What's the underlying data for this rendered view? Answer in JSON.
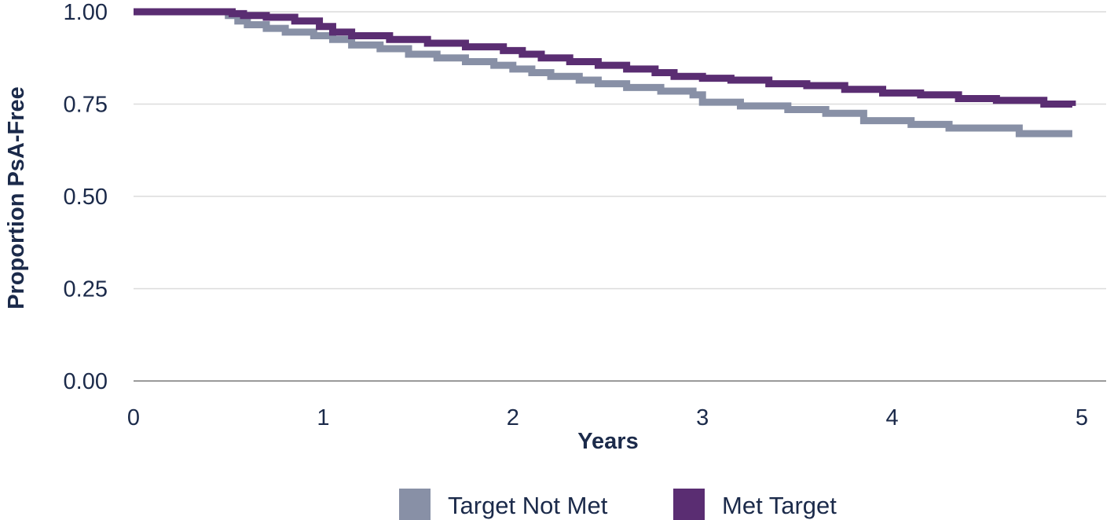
{
  "chart_data": {
    "type": "line",
    "step": true,
    "xlabel": "Years",
    "ylabel": "Proportion PsA-Free",
    "xlim": [
      0,
      5
    ],
    "ylim": [
      0,
      1
    ],
    "x_ticks": [
      "0",
      "1",
      "2",
      "3",
      "4",
      "5"
    ],
    "y_ticks": [
      "0.00",
      "0.25",
      "0.50",
      "0.75",
      "1.00"
    ],
    "grid": "horizontal",
    "legend_position": "bottom",
    "series": [
      {
        "name": "Target Not Met",
        "color": "#8890a6",
        "x": [
          0,
          0.44,
          0.5,
          0.55,
          0.6,
          0.7,
          0.8,
          0.95,
          1.05,
          1.15,
          1.3,
          1.45,
          1.6,
          1.75,
          1.9,
          2.0,
          2.1,
          2.2,
          2.35,
          2.45,
          2.6,
          2.78,
          2.95,
          3.0,
          3.2,
          3.45,
          3.65,
          3.85,
          4.1,
          4.3,
          4.5,
          4.67,
          4.95
        ],
        "y": [
          1.0,
          1.0,
          0.99,
          0.975,
          0.965,
          0.955,
          0.945,
          0.935,
          0.925,
          0.91,
          0.9,
          0.885,
          0.875,
          0.865,
          0.855,
          0.845,
          0.835,
          0.825,
          0.815,
          0.805,
          0.795,
          0.785,
          0.775,
          0.755,
          0.745,
          0.735,
          0.725,
          0.705,
          0.695,
          0.685,
          0.685,
          0.67,
          0.67
        ]
      },
      {
        "name": "Met Target",
        "color": "#5a2d72",
        "x": [
          0,
          0.46,
          0.52,
          0.58,
          0.7,
          0.85,
          0.98,
          1.05,
          1.15,
          1.35,
          1.55,
          1.75,
          1.95,
          2.05,
          2.15,
          2.3,
          2.45,
          2.6,
          2.75,
          2.85,
          3.0,
          3.15,
          3.35,
          3.55,
          3.75,
          3.95,
          4.15,
          4.35,
          4.55,
          4.8,
          4.95
        ],
        "y": [
          1.0,
          1.0,
          0.995,
          0.99,
          0.985,
          0.975,
          0.96,
          0.945,
          0.935,
          0.925,
          0.915,
          0.905,
          0.895,
          0.885,
          0.875,
          0.865,
          0.855,
          0.845,
          0.835,
          0.825,
          0.82,
          0.815,
          0.805,
          0.8,
          0.79,
          0.78,
          0.775,
          0.765,
          0.76,
          0.75,
          0.745
        ]
      }
    ]
  }
}
